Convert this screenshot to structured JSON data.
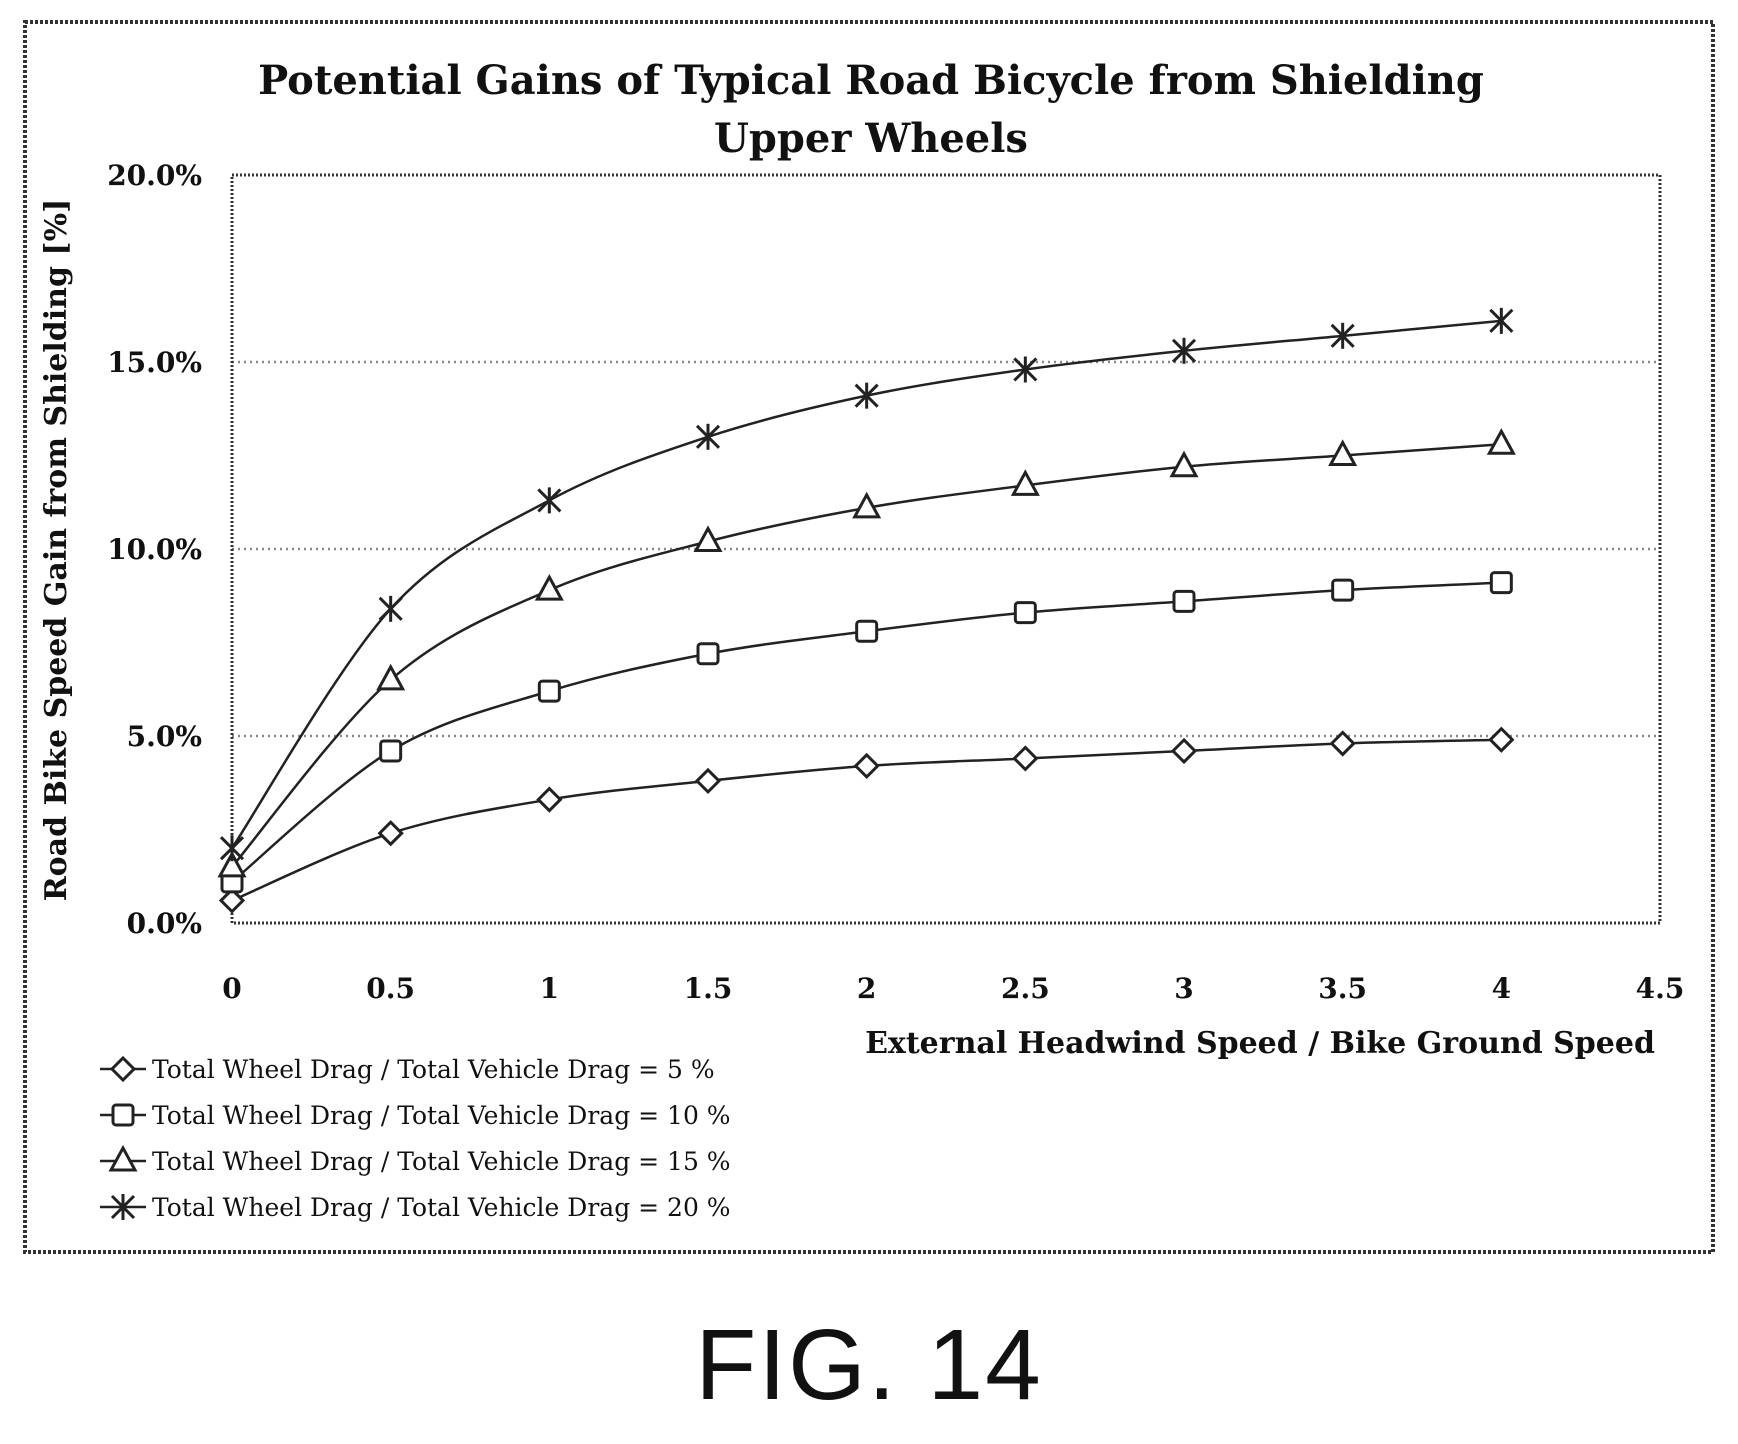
{
  "figure": {
    "caption": "FIG. 14"
  },
  "chart_data": {
    "type": "line",
    "title": "Potential Gains of Typical Road Bicycle from Shielding Upper Wheels",
    "title_lines": [
      "Potential Gains of  Typical Road Bicycle from Shielding",
      "Upper Wheels"
    ],
    "xlabel": "External Headwind Speed / Bike Ground Speed",
    "ylabel": "Road Bike Speed Gain from  Shielding [%]",
    "xlim": [
      0,
      4.5
    ],
    "ylim": [
      0,
      20
    ],
    "x_ticks": [
      "0",
      "0.5",
      "1",
      "1.5",
      "2",
      "2.5",
      "3",
      "3.5",
      "4",
      "4.5"
    ],
    "y_ticks": [
      "0.0%",
      "5.0%",
      "10.0%",
      "15.0%",
      "20.0%"
    ],
    "grid": "horizontal dotted",
    "legend_position": "bottom-left",
    "x": [
      0,
      0.5,
      1,
      1.5,
      2,
      2.5,
      3,
      3.5,
      4
    ],
    "series": [
      {
        "name": "Total Wheel Drag / Total Vehicle Drag = 5 %",
        "marker": "diamond",
        "values": [
          0.6,
          2.4,
          3.3,
          3.8,
          4.2,
          4.4,
          4.6,
          4.8,
          4.9
        ]
      },
      {
        "name": "Total Wheel Drag / Total Vehicle Drag = 10 %",
        "marker": "square",
        "values": [
          1.1,
          4.6,
          6.2,
          7.2,
          7.8,
          8.3,
          8.6,
          8.9,
          9.1
        ]
      },
      {
        "name": "Total Wheel Drag / Total Vehicle Drag = 15 %",
        "marker": "triangle",
        "values": [
          1.5,
          6.5,
          8.9,
          10.2,
          11.1,
          11.7,
          12.2,
          12.5,
          12.8
        ]
      },
      {
        "name": "Total Wheel Drag / Total Vehicle Drag = 20 %",
        "marker": "x",
        "values": [
          2.0,
          8.4,
          11.3,
          13.0,
          14.1,
          14.8,
          15.3,
          15.7,
          16.1
        ]
      }
    ],
    "colors": {
      "line": "#222222",
      "grid": "#888888",
      "frame": "#333333"
    }
  }
}
